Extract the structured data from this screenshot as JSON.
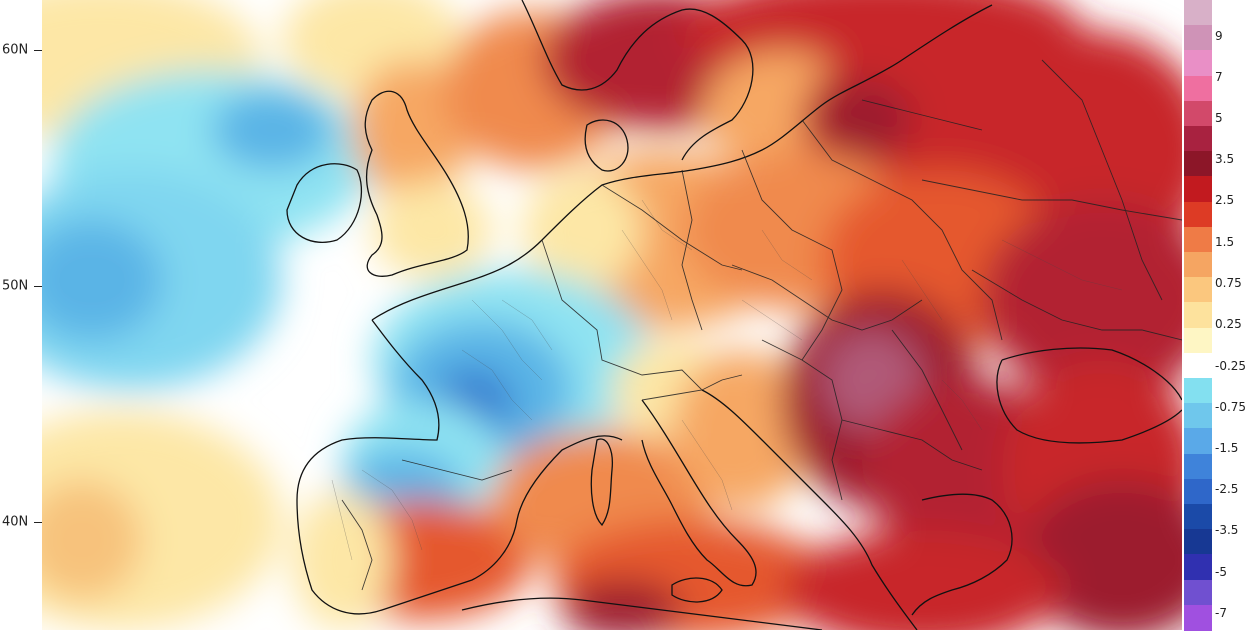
{
  "latitude_labels": [
    "60N",
    "50N",
    "40N"
  ],
  "legend": {
    "palette": [
      "#d8b0c8",
      "#cf93b7",
      "#e98fc6",
      "#ef6fa0",
      "#d2496a",
      "#a82240",
      "#8c1628",
      "#c21a1f",
      "#dd3b25",
      "#ef7b46",
      "#f5a562",
      "#fbc77e",
      "#fde29d",
      "#fef6c4",
      "#ffffff",
      "#83e0f0",
      "#6fc7ec",
      "#5aa9e8",
      "#3f83da",
      "#2f67c9",
      "#1b4aa8",
      "#173893",
      "#3030b0",
      "#7050d0",
      "#a050e0"
    ],
    "labels": [
      "9",
      "7",
      "5",
      "3.5",
      "2.5",
      "1.5",
      "0.75",
      "0.25",
      "-0.25",
      "-0.75",
      "-1.5",
      "-2.5",
      "-3.5",
      "-5",
      "-7"
    ]
  },
  "map": {
    "description_colors": {
      "ocean_neutral": "#ffffff",
      "cool_light": "#8fe3f2",
      "cool_mid": "#5ab4e6",
      "cool_deep": "#3278cf",
      "warm_light": "#fde7a6",
      "warm_mid": "#f6a763",
      "warm_hot": "#e5592f",
      "warm_strong": "#c8262a",
      "warm_extreme": "#8c1c34",
      "coastline": "#111111",
      "borders": "#333333"
    }
  }
}
